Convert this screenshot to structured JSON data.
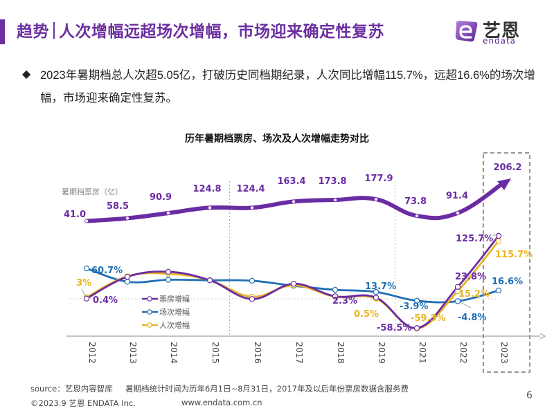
{
  "header": {
    "title_prefix": "趋势",
    "title_main": "人次增幅远超场次增幅，市场迎来确定性复苏",
    "logo_cn": "艺恩",
    "logo_en": "endata"
  },
  "summary": {
    "bullet": "◆",
    "text": "2023年暑期档总人次超5.05亿，打破历史同档期纪录，人次同比增幅115.7%，远超16.6%的场次增幅，市场迎来确定性复苏。"
  },
  "colors": {
    "brand_purple": "#6b2fa0",
    "box_office_line": "#6a2ca3",
    "screenings_line": "#1f6fb5",
    "admissions_line": "#e8b420",
    "highlight_box": "#9a9a9a"
  },
  "chart_data": {
    "type": "line",
    "title": "历年暑期档票房、场次及人次增幅走势对比",
    "categories": [
      "2012",
      "2013",
      "2014",
      "2015",
      "2016",
      "2017",
      "2018",
      "2019",
      "2021",
      "2022",
      "2023"
    ],
    "highlight_category": "2023",
    "box_office": {
      "name": "暑期档票房（亿）",
      "values": [
        41.0,
        58.5,
        90.9,
        124.8,
        124.4,
        163.4,
        173.8,
        177.9,
        73.8,
        91.4,
        206.2
      ],
      "labels": [
        "41.0",
        "58.5",
        "90.9",
        "124.8",
        "124.4",
        "163.4",
        "173.8",
        "177.9",
        "73.8",
        "91.4",
        "206.2"
      ]
    },
    "growth_series": [
      {
        "name": "票房增幅",
        "key": "box_office_growth",
        "values": [
          0.4,
          44,
          54,
          37,
          -0.5,
          30,
          5,
          2.3,
          -58.5,
          23.8,
          125.7
        ],
        "labels": [
          "0.4%",
          null,
          null,
          null,
          null,
          null,
          null,
          "2.3%",
          "-58.5%",
          "23.8%",
          "125.7%"
        ]
      },
      {
        "name": "场次增幅",
        "key": "screenings_growth",
        "values": [
          60.7,
          34,
          38,
          37,
          36,
          26,
          18,
          13.7,
          -3.9,
          -4.8,
          16.6
        ],
        "labels": [
          "60.7%",
          null,
          null,
          null,
          null,
          null,
          null,
          "13.7%",
          "-3.9%",
          "-4.8%",
          "16.6%"
        ]
      },
      {
        "name": "人次增幅",
        "key": "admissions_growth",
        "values": [
          3,
          45,
          50,
          37,
          4,
          27,
          4,
          0.5,
          -59.3,
          15.2,
          115.7
        ],
        "labels": [
          "3%",
          null,
          null,
          null,
          null,
          null,
          null,
          "0.5%",
          "-59.3%",
          "15.2%",
          "115.7%"
        ]
      }
    ],
    "legend": [
      "票房增幅",
      "场次增幅",
      "人次增幅"
    ],
    "legend_position": "left-center",
    "growth_ylim": [
      -65,
      135
    ],
    "box_office_ylim": [
      0,
      220
    ],
    "grid": false,
    "separators_after": [
      "2015",
      "2019"
    ]
  },
  "footer": {
    "source": "source：艺恩内容智库     暑期档统计时间为历年6月1日~8月31日，2017年及以后年份票房数据含服务费",
    "copyright": "©2023.9 艺恩 ENDATA Inc.",
    "url": "www.endata.com.cn",
    "page_number": "6"
  }
}
